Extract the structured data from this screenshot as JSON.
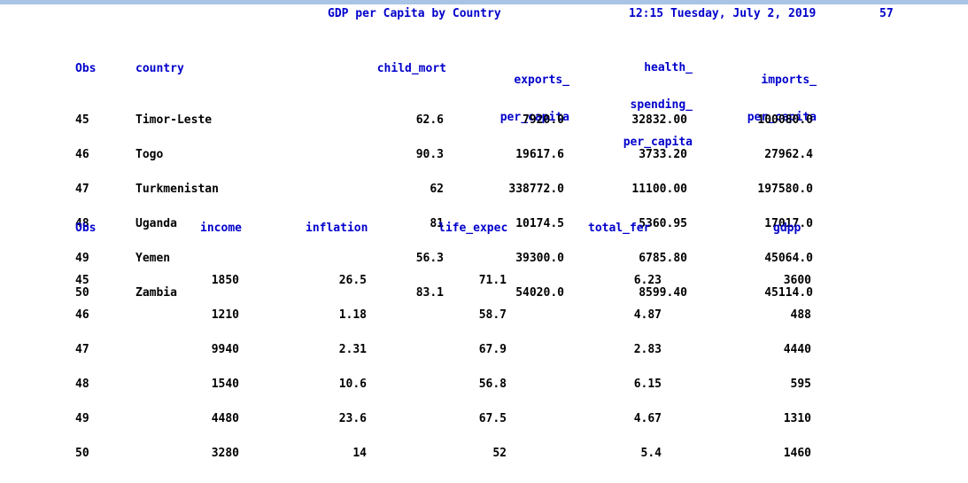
{
  "title": "GDP per Capita by Country",
  "timestamp": "12:15 Tuesday, July 2, 2019",
  "page_number": "57",
  "table1": {
    "headers": {
      "obs": "Obs",
      "country": "country",
      "child_mort": "child_mort",
      "exports": [
        "exports_",
        "per_capita"
      ],
      "health": [
        "health_",
        "spending_",
        "per_capita"
      ],
      "imports": [
        "imports_",
        "per_capita"
      ]
    },
    "rows": [
      {
        "obs": "45",
        "country": "Timor-Leste",
        "child_mort": "62.6",
        "exports": "7920.0",
        "health": "32832.00",
        "imports": "100080.0"
      },
      {
        "obs": "46",
        "country": "Togo",
        "child_mort": "90.3",
        "exports": "19617.6",
        "health": "3733.20",
        "imports": "27962.4"
      },
      {
        "obs": "47",
        "country": "Turkmenistan",
        "child_mort": "62",
        "exports": "338772.0",
        "health": "11100.00",
        "imports": "197580.0"
      },
      {
        "obs": "48",
        "country": "Uganda",
        "child_mort": "81",
        "exports": "10174.5",
        "health": "5360.95",
        "imports": "17017.0"
      },
      {
        "obs": "49",
        "country": "Yemen",
        "child_mort": "56.3",
        "exports": "39300.0",
        "health": "6785.80",
        "imports": "45064.0"
      },
      {
        "obs": "50",
        "country": "Zambia",
        "child_mort": "83.1",
        "exports": "54020.0",
        "health": "8599.40",
        "imports": "45114.0"
      }
    ]
  },
  "table2": {
    "headers": {
      "obs": "Obs",
      "income": "income",
      "inflation": "inflation",
      "life_expec": "life_expec",
      "total_fer": "total_fer",
      "gdpp": "gdpp"
    },
    "rows": [
      {
        "obs": "45",
        "income": "1850",
        "inflation": "26.5",
        "life_expec": "71.1",
        "total_fer": "6.23",
        "gdpp": "3600"
      },
      {
        "obs": "46",
        "income": "1210",
        "inflation": "1.18",
        "life_expec": "58.7",
        "total_fer": "4.87",
        "gdpp": "488"
      },
      {
        "obs": "47",
        "income": "9940",
        "inflation": "2.31",
        "life_expec": "67.9",
        "total_fer": "2.83",
        "gdpp": "4440"
      },
      {
        "obs": "48",
        "income": "1540",
        "inflation": "10.6",
        "life_expec": "56.8",
        "total_fer": "6.15",
        "gdpp": "595"
      },
      {
        "obs": "49",
        "income": "4480",
        "inflation": "23.6",
        "life_expec": "67.5",
        "total_fer": "4.67",
        "gdpp": "1310"
      },
      {
        "obs": "50",
        "income": "3280",
        "inflation": "14",
        "life_expec": "52",
        "total_fer": "5.4",
        "gdpp": "1460"
      }
    ]
  }
}
